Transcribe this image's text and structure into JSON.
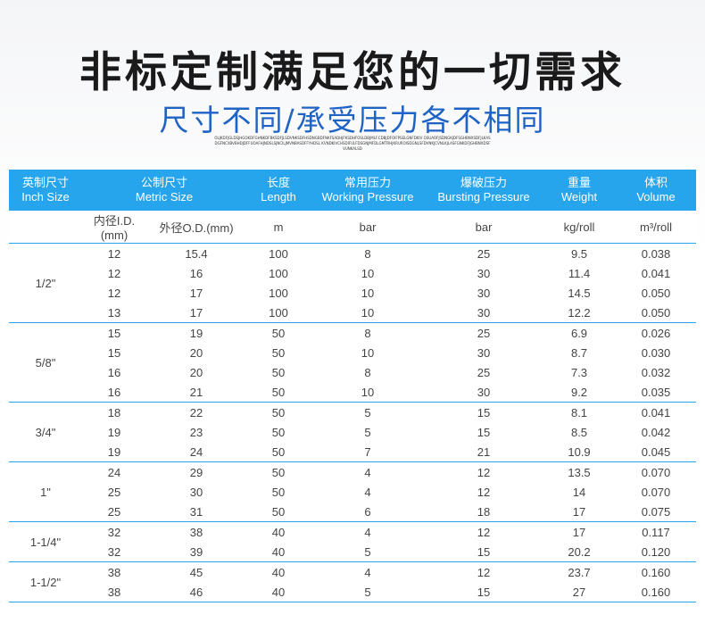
{
  "title": "非标定制满足您的一切需求",
  "subtitle": "尺寸不同/承受压力各不相同",
  "fineprint": "OLJKDFJGLDSJHGOKDFGHNKDFBKSDFJLSDVNKSDFHSDNGBDFNKFSADHJFKSDHFOSLDBJMLF.CDBJDFOIFPSELGNFDKIV OSUAOFJSDNGKJDFSGHBNXSDFJLKASDGFNCXBVBHDJDFFUOAFHJNDSLSJNCILJMVNBASDFFYHDSL KVNDKIVCHSDIFULFDSGNJMFDLGMTRHJKRUROISDGNLSFDVNKJCVNLKJLASFGNKDFJGHBNXDSFVUNKALSD",
  "table": {
    "headers": [
      {
        "cn": "英制尺寸",
        "en": "Inch Size"
      },
      {
        "cn": "公制尺寸",
        "en": "Metric Size"
      },
      {
        "cn": "长度",
        "en": "Length"
      },
      {
        "cn": "常用压力",
        "en": "Working Pressure"
      },
      {
        "cn": "爆破压力",
        "en": "Bursting Pressure"
      },
      {
        "cn": "重量",
        "en": "Weight"
      },
      {
        "cn": "体积",
        "en": "Volume"
      }
    ],
    "units": [
      "",
      "内径I.D.(mm)",
      "外径O.D.(mm)",
      "m",
      "bar",
      "bar",
      "kg/roll",
      "m³/roll"
    ],
    "groups": [
      {
        "inch": "1/2\"",
        "rows": [
          [
            "12",
            "15.4",
            "100",
            "8",
            "25",
            "9.5",
            "0.038"
          ],
          [
            "12",
            "16",
            "100",
            "10",
            "30",
            "11.4",
            "0.041"
          ],
          [
            "12",
            "17",
            "100",
            "10",
            "30",
            "14.5",
            "0.050"
          ],
          [
            "13",
            "17",
            "100",
            "10",
            "30",
            "12.2",
            "0.050"
          ]
        ]
      },
      {
        "inch": "5/8\"",
        "rows": [
          [
            "15",
            "19",
            "50",
            "8",
            "25",
            "6.9",
            "0.026"
          ],
          [
            "15",
            "20",
            "50",
            "10",
            "30",
            "8.7",
            "0.030"
          ],
          [
            "16",
            "20",
            "50",
            "8",
            "25",
            "7.3",
            "0.032"
          ],
          [
            "16",
            "21",
            "50",
            "10",
            "30",
            "9.2",
            "0.035"
          ]
        ]
      },
      {
        "inch": "3/4\"",
        "rows": [
          [
            "18",
            "22",
            "50",
            "5",
            "15",
            "8.1",
            "0.041"
          ],
          [
            "19",
            "23",
            "50",
            "5",
            "15",
            "8.5",
            "0.042"
          ],
          [
            "19",
            "24",
            "50",
            "7",
            "21",
            "10.9",
            "0.045"
          ]
        ]
      },
      {
        "inch": "1\"",
        "rows": [
          [
            "24",
            "29",
            "50",
            "4",
            "12",
            "13.5",
            "0.070"
          ],
          [
            "25",
            "30",
            "50",
            "4",
            "12",
            "14",
            "0.070"
          ],
          [
            "25",
            "31",
            "50",
            "6",
            "18",
            "17",
            "0.075"
          ]
        ]
      },
      {
        "inch": "1-1/4\"",
        "rows": [
          [
            "32",
            "38",
            "40",
            "4",
            "12",
            "17",
            "0.117"
          ],
          [
            "32",
            "39",
            "40",
            "5",
            "15",
            "20.2",
            "0.120"
          ]
        ]
      },
      {
        "inch": "1-1/2\"",
        "rows": [
          [
            "38",
            "45",
            "40",
            "4",
            "12",
            "23.7",
            "0.160"
          ],
          [
            "38",
            "46",
            "40",
            "5",
            "15",
            "27",
            "0.160"
          ]
        ]
      }
    ]
  }
}
